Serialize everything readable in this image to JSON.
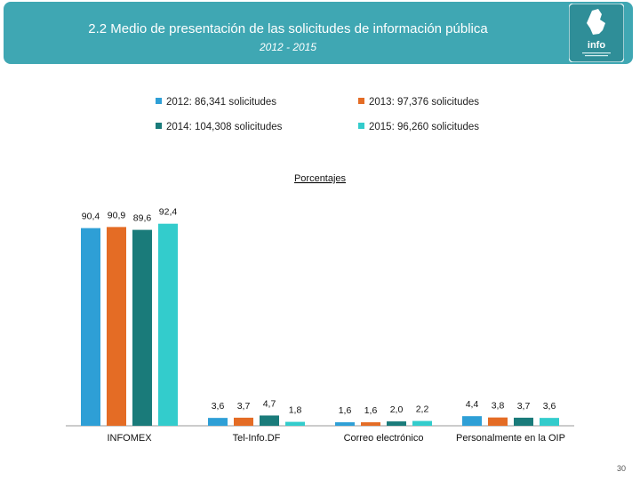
{
  "header": {
    "title": "2.2 Medio de presentación de las solicitudes de información pública",
    "subtitle": "2012 - 2015",
    "logo_text": "info"
  },
  "chart_data": {
    "type": "bar",
    "title": "Porcentajes",
    "categories": [
      "INFOMEX",
      "Tel-Info.DF",
      "Correo electrónico",
      "Personalmente en la OIP"
    ],
    "series": [
      {
        "name": "2012: 86,341 solicitudes",
        "color": "#2e9fd6",
        "values": [
          90.4,
          3.6,
          1.6,
          4.4
        ],
        "labels": [
          "90,4",
          "3,6",
          "1,6",
          "4,4"
        ]
      },
      {
        "name": "2013: 97,376 solicitudes",
        "color": "#e46c25",
        "values": [
          90.9,
          3.7,
          1.6,
          3.8
        ],
        "labels": [
          "90,9",
          "3,7",
          "1,6",
          "3,8"
        ]
      },
      {
        "name": "2014: 104,308 solicitudes",
        "color": "#1a7b7a",
        "values": [
          89.6,
          4.7,
          2.0,
          3.7
        ],
        "labels": [
          "89,6",
          "4,7",
          "2,0",
          "3,7"
        ]
      },
      {
        "name": "2015: 96,260 solicitudes",
        "color": "#33cccc",
        "values": [
          92.4,
          1.8,
          2.2,
          3.6
        ],
        "labels": [
          "92,4",
          "1,8",
          "2,2",
          "3,6"
        ]
      }
    ],
    "ylim": [
      0,
      100
    ],
    "xlabel": "",
    "ylabel": "",
    "grid": false,
    "legend": "top"
  },
  "page": {
    "number": "30"
  }
}
